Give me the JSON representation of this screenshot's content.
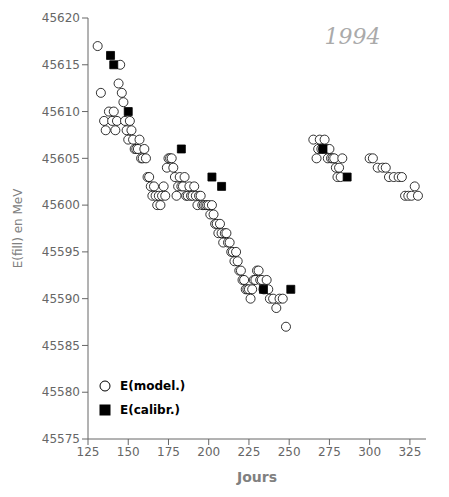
{
  "chart_data": {
    "type": "scatter",
    "annotations": [
      "1994"
    ],
    "xlabel": "Jours",
    "ylabel": "E(fill) en MeV",
    "xlim": [
      125,
      335
    ],
    "ylim": [
      45575,
      45620
    ],
    "xticks": [
      125,
      150,
      175,
      200,
      225,
      250,
      275,
      300,
      325
    ],
    "yticks": [
      45575,
      45580,
      45585,
      45590,
      45595,
      45600,
      45605,
      45610,
      45615,
      45620
    ],
    "grid": false,
    "legend": "lower left",
    "series": [
      {
        "name": "E(model.)",
        "color": "white",
        "marker": "circle",
        "x": [
          131,
          133,
          135,
          136,
          138,
          140,
          141,
          142,
          143,
          144,
          145,
          146,
          147,
          148,
          149,
          150,
          151,
          152,
          153,
          154,
          155,
          156,
          157,
          158,
          159,
          160,
          161,
          162,
          163,
          164,
          165,
          166,
          167,
          168,
          169,
          170,
          171,
          172,
          173,
          174,
          175,
          176,
          177,
          178,
          179,
          180,
          181,
          182,
          183,
          184,
          185,
          186,
          187,
          188,
          189,
          190,
          191,
          192,
          193,
          194,
          195,
          196,
          197,
          198,
          199,
          200,
          201,
          202,
          203,
          204,
          205,
          206,
          207,
          208,
          209,
          210,
          211,
          212,
          213,
          214,
          215,
          216,
          217,
          218,
          219,
          220,
          221,
          222,
          223,
          224,
          225,
          226,
          227,
          228,
          229,
          230,
          231,
          232,
          233,
          234,
          235,
          236,
          237,
          238,
          240,
          242,
          244,
          246,
          248,
          265,
          267,
          268,
          269,
          270,
          271,
          272,
          273,
          274,
          275,
          276,
          277,
          278,
          279,
          280,
          281,
          282,
          283,
          300,
          302,
          305,
          308,
          310,
          312,
          315,
          318,
          320,
          322,
          324,
          326,
          328,
          330
        ],
        "y": [
          45617,
          45612,
          45609,
          45608,
          45610,
          45609,
          45610,
          45608,
          45609,
          45613,
          45615,
          45612,
          45611,
          45609,
          45608,
          45607,
          45609,
          45608,
          45607,
          45606,
          45606,
          45606,
          45607,
          45605,
          45605,
          45606,
          45605,
          45603,
          45603,
          45602,
          45601,
          45602,
          45601,
          45600,
          45601,
          45600,
          45601,
          45602,
          45601,
          45604,
          45605,
          45605,
          45605,
          45604,
          45603,
          45601,
          45602,
          45603,
          45602,
          45602,
          45603,
          45601,
          45601,
          45602,
          45601,
          45601,
          45602,
          45601,
          45600,
          45601,
          45601,
          45600,
          45600,
          45600,
          45600,
          45600,
          45599,
          45600,
          45599,
          45598,
          45598,
          45597,
          45598,
          45597,
          45596,
          45597,
          45597,
          45596,
          45596,
          45595,
          45595,
          45594,
          45595,
          45594,
          45593,
          45593,
          45592,
          45592,
          45591,
          45591,
          45591,
          45590,
          45591,
          45592,
          45592,
          45593,
          45593,
          45592,
          45592,
          45591,
          45591,
          45592,
          45591,
          45590,
          45590,
          45589,
          45590,
          45590,
          45587,
          45607,
          45605,
          45606,
          45607,
          45606,
          45606,
          45607,
          45606,
          45605,
          45606,
          45605,
          45605,
          45605,
          45604,
          45603,
          45604,
          45603,
          45605,
          45605,
          45605,
          45604,
          45604,
          45604,
          45603,
          45603,
          45603,
          45603,
          45601,
          45601,
          45601,
          45602,
          45601
        ]
      },
      {
        "name": "E(calibr.)",
        "color": "black",
        "marker": "square",
        "x": [
          139,
          141,
          150,
          183,
          202,
          208,
          234,
          251,
          271,
          286
        ],
        "y": [
          45616,
          45615,
          45610,
          45606,
          45603,
          45602,
          45591,
          45591,
          45606,
          45603
        ]
      }
    ]
  }
}
